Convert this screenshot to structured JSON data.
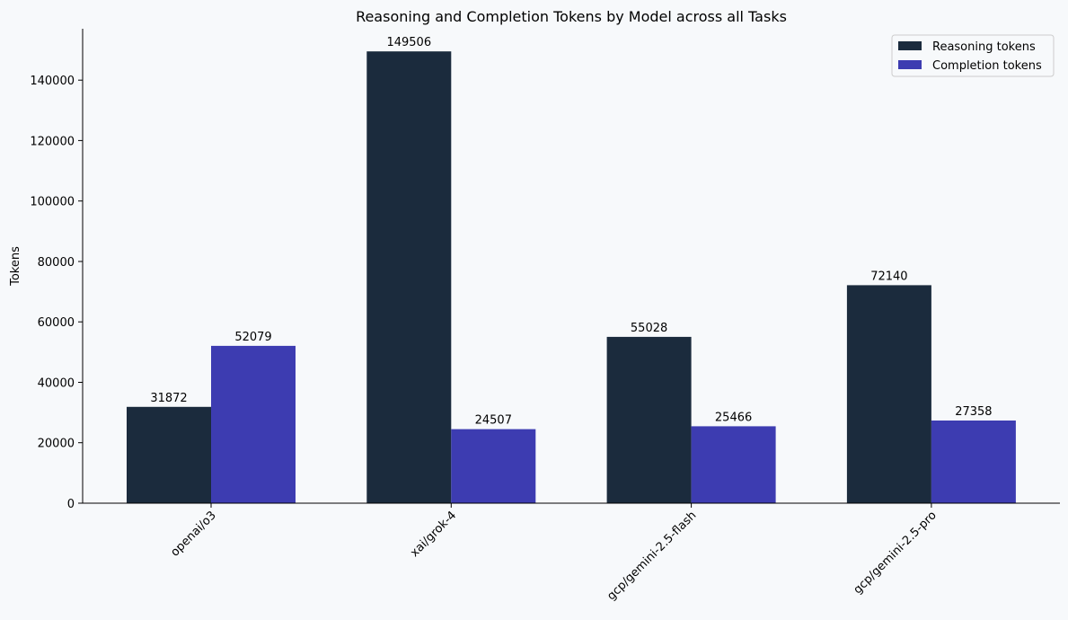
{
  "chart_data": {
    "type": "bar",
    "title": "Reasoning and Completion Tokens by Model across all Tasks",
    "xlabel": "",
    "ylabel": "Tokens",
    "categories": [
      "openai/o3",
      "xai/grok-4",
      "gcp/gemini-2.5-flash",
      "gcp/gemini-2.5-pro"
    ],
    "series": [
      {
        "name": "Reasoning tokens",
        "color": "#1b2b3d",
        "values": [
          31872,
          149506,
          55028,
          72140
        ]
      },
      {
        "name": "Completion tokens",
        "color": "#3d3cb1",
        "values": [
          52079,
          24507,
          25466,
          27358
        ]
      }
    ],
    "ylim": [
      0,
      157000
    ],
    "yticks": [
      0,
      20000,
      40000,
      60000,
      80000,
      100000,
      120000,
      140000
    ],
    "grid": false,
    "legend_position": "top-right",
    "data_labels": true,
    "background": "#f7f9fb"
  }
}
